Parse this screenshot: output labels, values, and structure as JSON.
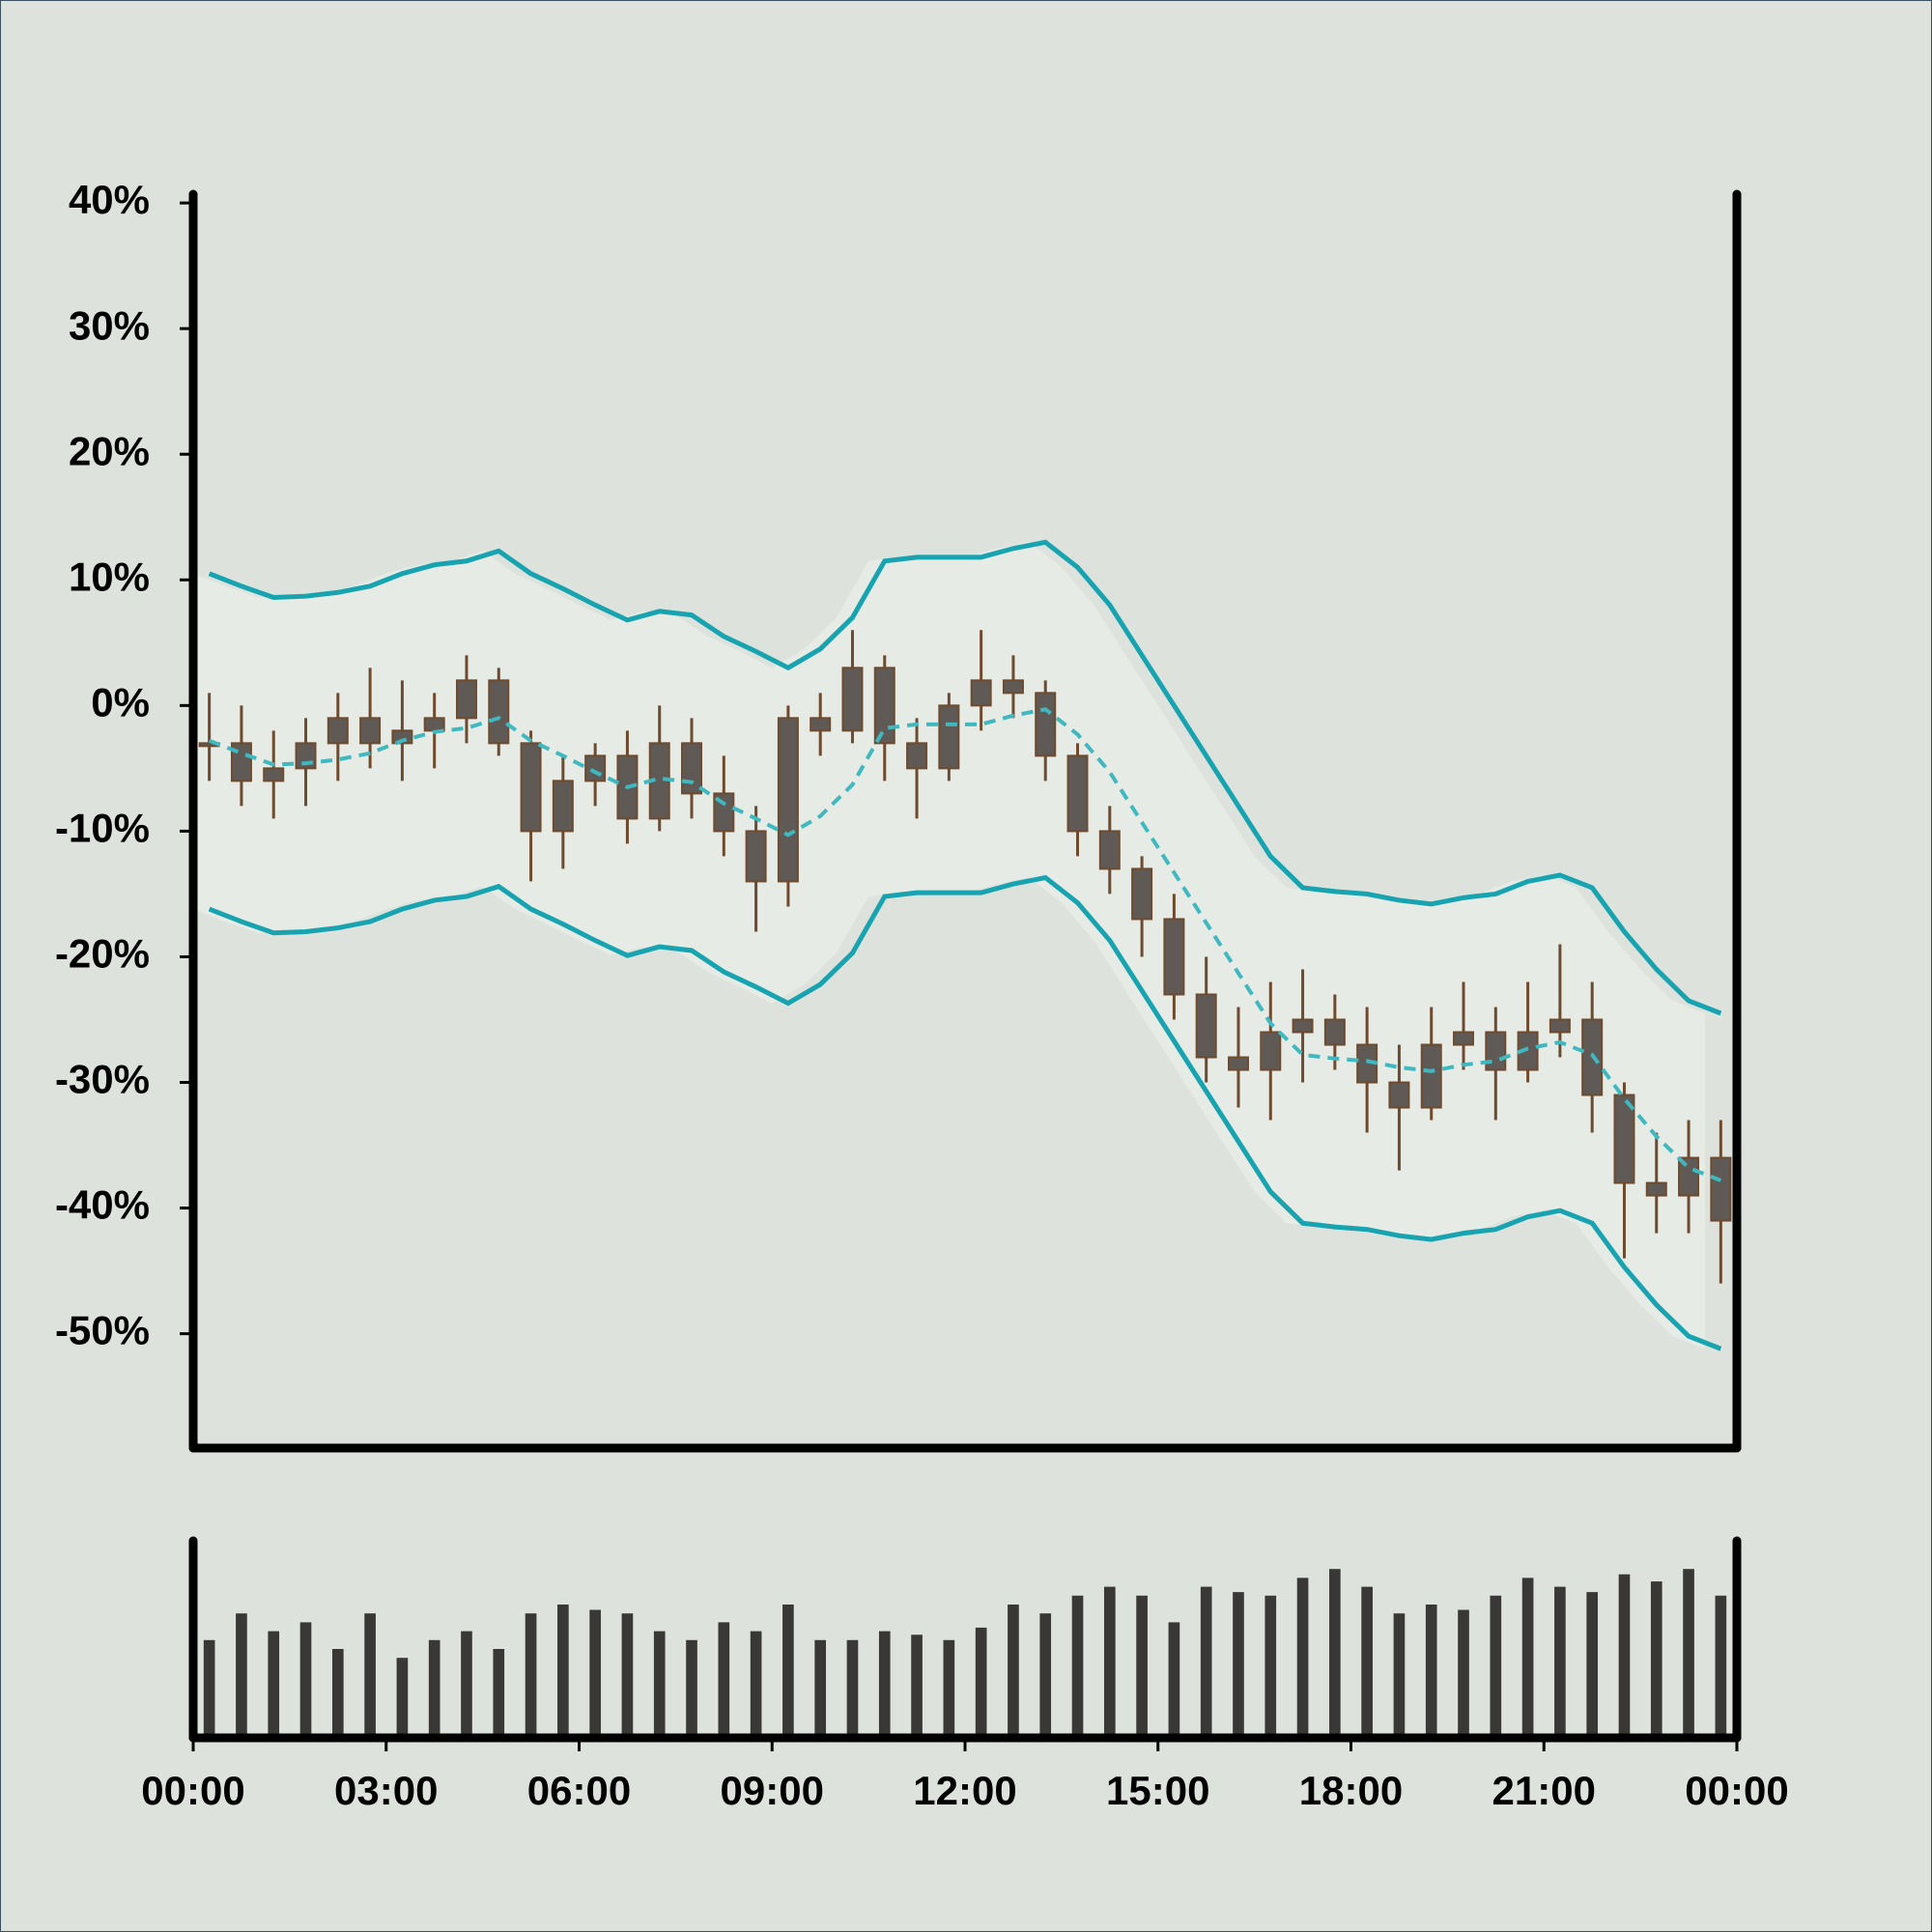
{
  "chart_data": {
    "type": "candlestick",
    "x": [
      0,
      0.5,
      1,
      1.5,
      2,
      2.5,
      3,
      3.5,
      4,
      4.5,
      5,
      5.5,
      6,
      6.5,
      7,
      7.5,
      8,
      8.5,
      9,
      9.5,
      10,
      10.5,
      11,
      11.5,
      12,
      12.5,
      13,
      13.5,
      14,
      14.5,
      15,
      15.5,
      16,
      16.5,
      17,
      17.5,
      18,
      18.5,
      19,
      19.5,
      20,
      20.5,
      21,
      21.5,
      22,
      22.5,
      23,
      23.5
    ],
    "xlim": [
      0,
      24
    ],
    "xticks": [
      {
        "value": 0,
        "label": "00:00"
      },
      {
        "value": 3,
        "label": "03:00"
      },
      {
        "value": 6,
        "label": "06:00"
      },
      {
        "value": 9,
        "label": "09:00"
      },
      {
        "value": 12,
        "label": "12:00"
      },
      {
        "value": 15,
        "label": "15:00"
      },
      {
        "value": 18,
        "label": "18:00"
      },
      {
        "value": 21,
        "label": "21:00"
      },
      {
        "value": 24,
        "label": "00:00"
      }
    ],
    "ylim": [
      -59.1,
      40.7
    ],
    "yticks": [
      {
        "value": 40,
        "label": "40%"
      },
      {
        "value": 30,
        "label": "30%"
      },
      {
        "value": 20,
        "label": "20%"
      },
      {
        "value": 10,
        "label": "10%"
      },
      {
        "value": 0,
        "label": "0%"
      },
      {
        "value": -10,
        "label": "-10%"
      },
      {
        "value": -20,
        "label": "-20%"
      },
      {
        "value": -30,
        "label": "-30%"
      },
      {
        "value": -40,
        "label": "-40%"
      },
      {
        "value": -50,
        "label": "-50%"
      }
    ],
    "open": [
      -3,
      -3,
      -6,
      -5,
      -3,
      -1,
      -3,
      -2,
      -1,
      2,
      -3,
      -10,
      -6,
      -4,
      -9,
      -3,
      -7,
      -10,
      -14,
      -1,
      -2,
      3,
      -3,
      -5,
      0,
      2,
      1,
      -4,
      -10,
      -13,
      -17,
      -23,
      -28,
      -29,
      -26,
      -25,
      -27,
      -30,
      -32,
      -27,
      -26,
      -29,
      -26,
      -25,
      -31,
      -38,
      -39,
      -36
    ],
    "high": [
      1,
      0,
      -2,
      -1,
      1,
      3,
      2,
      1,
      4,
      3,
      -2,
      -4,
      -3,
      -2,
      0,
      -1,
      -4,
      -8,
      0,
      1,
      6,
      4,
      -1,
      1,
      6,
      4,
      2,
      -3,
      -8,
      -12,
      -15,
      -20,
      -24,
      -22,
      -21,
      -23,
      -24,
      -27,
      -24,
      -22,
      -24,
      -22,
      -19,
      -22,
      -30,
      -34,
      -33,
      -33
    ],
    "low": [
      -6,
      -8,
      -9,
      -8,
      -6,
      -5,
      -6,
      -5,
      -3,
      -4,
      -14,
      -13,
      -8,
      -11,
      -10,
      -9,
      -12,
      -18,
      -16,
      -4,
      -3,
      -6,
      -9,
      -6,
      -2,
      -1,
      -6,
      -12,
      -15,
      -20,
      -25,
      -30,
      -32,
      -33,
      -30,
      -29,
      -34,
      -37,
      -33,
      -29,
      -33,
      -30,
      -28,
      -34,
      -44,
      -42,
      -42,
      -46
    ],
    "close": [
      -3,
      -6,
      -5,
      -3,
      -1,
      -3,
      -2,
      -1,
      2,
      -3,
      -10,
      -6,
      -4,
      -9,
      -3,
      -7,
      -10,
      -14,
      -1,
      -2,
      3,
      -3,
      -5,
      0,
      2,
      1,
      -4,
      -10,
      -13,
      -17,
      -23,
      -28,
      -29,
      -26,
      -25,
      -27,
      -30,
      -32,
      -27,
      -26,
      -29,
      -26,
      -25,
      -31,
      -38,
      -39,
      -36,
      -41
    ],
    "body_color": "#5f5a55",
    "wick_color": "#6e4a2e",
    "bands": {
      "upper": {
        "color": "#17a3b0",
        "values": [
          10.5,
          9.5,
          8.6,
          8.7,
          9,
          9.5,
          10.5,
          11.2,
          11.5,
          12.3,
          10.5,
          9.3,
          8,
          6.8,
          7.5,
          7.2,
          5.5,
          4.3,
          3,
          4.5,
          7,
          11.5,
          11.8,
          11.8,
          11.8,
          12.5,
          13,
          11,
          8,
          4,
          0,
          -4,
          -8,
          -12,
          -14.5,
          -14.8,
          -15,
          -15.5,
          -15.8,
          -15.3,
          -15,
          -14,
          -13.5,
          -14.5,
          -18,
          -21,
          -23.5,
          -24.5
        ]
      },
      "middle": {
        "color": "#3fb8c0",
        "dashed": true,
        "values": [
          -2.8,
          -3.8,
          -4.7,
          -4.6,
          -4.3,
          -3.8,
          -2.8,
          -2.1,
          -1.8,
          -1,
          -2.8,
          -4,
          -5.3,
          -6.5,
          -5.8,
          -6.1,
          -7.8,
          -9,
          -10.3,
          -8.8,
          -6.3,
          -1.8,
          -1.5,
          -1.5,
          -1.5,
          -0.8,
          -0.3,
          -2.3,
          -5.3,
          -9.3,
          -13.3,
          -17.3,
          -21.3,
          -25.3,
          -27.8,
          -28.1,
          -28.3,
          -28.8,
          -29.1,
          -28.6,
          -28.3,
          -27.3,
          -26.8,
          -27.8,
          -31.3,
          -34.3,
          -36.8,
          -37.8
        ]
      },
      "lower": {
        "color": "#17a3b0",
        "values": [
          -16.2,
          -17.2,
          -18.1,
          -18,
          -17.7,
          -17.2,
          -16.2,
          -15.5,
          -15.2,
          -14.4,
          -16.2,
          -17.4,
          -18.7,
          -19.9,
          -19.2,
          -19.5,
          -21.2,
          -22.4,
          -23.7,
          -22.2,
          -19.7,
          -15.2,
          -14.9,
          -14.9,
          -14.9,
          -14.2,
          -13.7,
          -15.7,
          -18.7,
          -22.7,
          -26.7,
          -30.7,
          -34.7,
          -38.7,
          -41.2,
          -41.5,
          -41.7,
          -42.2,
          -42.5,
          -42,
          -41.7,
          -40.7,
          -40.2,
          -41.2,
          -44.7,
          -47.7,
          -50.2,
          -51.2
        ]
      }
    },
    "volume": {
      "color": "#3a3836",
      "ylim": [
        0,
        100
      ],
      "values": [
        55,
        70,
        60,
        65,
        50,
        70,
        45,
        55,
        60,
        50,
        70,
        75,
        72,
        70,
        60,
        55,
        65,
        60,
        75,
        55,
        55,
        60,
        58,
        55,
        62,
        75,
        70,
        80,
        85,
        80,
        65,
        85,
        82,
        80,
        90,
        95,
        85,
        70,
        75,
        72,
        80,
        90,
        85,
        82,
        92,
        88,
        95,
        80
      ]
    }
  }
}
